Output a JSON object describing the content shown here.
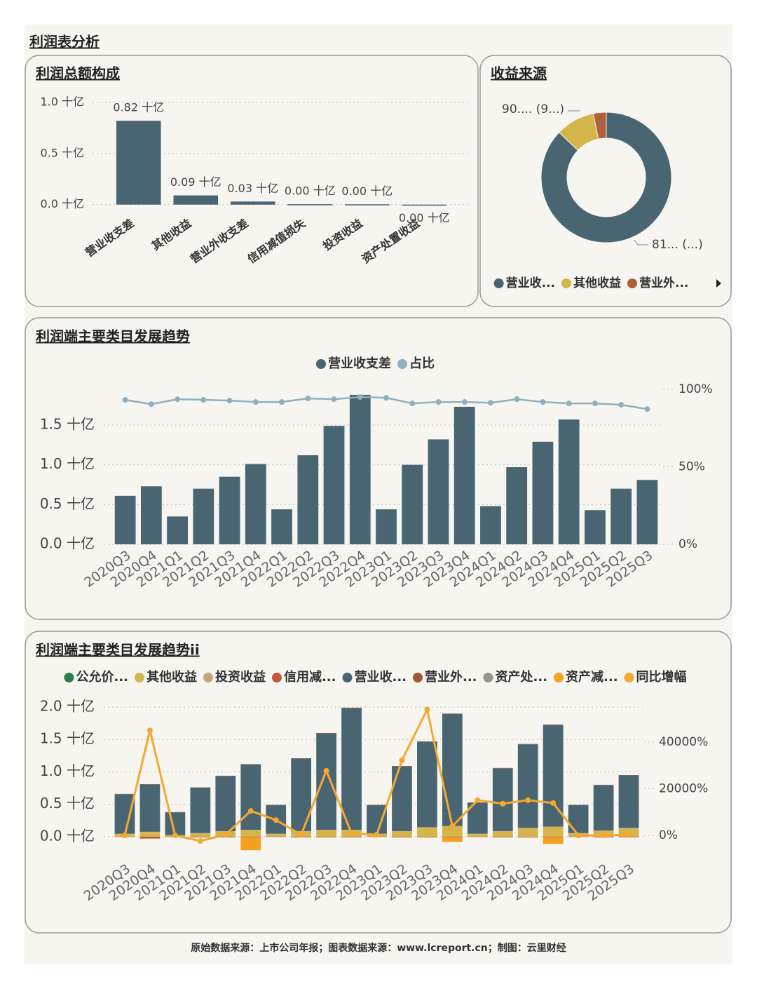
{
  "title": "利润表分析",
  "source": "原始数据来源：上市公司年报；图表数据来源：www.lcreport.cn；制图：云里财经",
  "chart_data": [
    {
      "type": "bar",
      "title": "利润总额构成",
      "categories": [
        "营业收支差",
        "其他收益",
        "营业外收支差",
        "信用减值损失",
        "投资收益",
        "资产处置收益"
      ],
      "values": [
        0.82,
        0.09,
        0.03,
        0.004,
        0.003,
        -0.004
      ],
      "value_labels": [
        "0.82 十亿",
        "0.09 十亿",
        "0.03 十亿",
        "0.00 十亿",
        "0.00 十亿",
        "0.00 十亿"
      ],
      "color": "#4a6572",
      "ylim": [
        -0.05,
        1.0
      ],
      "yticks": [
        {
          "value": 0,
          "label": "0.0 十亿"
        },
        {
          "value": 0.5,
          "label": "0.5 十亿"
        },
        {
          "value": 1.0,
          "label": "1.0 十亿"
        }
      ],
      "grid": true
    },
    {
      "type": "pie",
      "title": "收益来源",
      "categories": [
        "营业收...",
        "其他收益",
        "营业外..."
      ],
      "values": [
        815,
        90.5,
        30
      ],
      "value_labels": [
        "81... (...)",
        "90.... (9...)",
        null
      ],
      "colors": [
        "#4a6572",
        "#d4b54a",
        "#b0603c"
      ]
    },
    {
      "type": "combo",
      "title": "利润端主要类目发展趋势",
      "categories": [
        "2020Q3",
        "2020Q4",
        "2021Q1",
        "2021Q2",
        "2021Q3",
        "2021Q4",
        "2022Q1",
        "2022Q2",
        "2022Q3",
        "2022Q4",
        "2023Q1",
        "2023Q2",
        "2023Q3",
        "2023Q4",
        "2024Q1",
        "2024Q2",
        "2024Q3",
        "2024Q4",
        "2025Q1",
        "2025Q2",
        "2025Q3"
      ],
      "series": [
        {
          "name": "营业收支差",
          "type": "bar",
          "color": "#4a6572",
          "values": [
            0.61,
            0.73,
            0.35,
            0.7,
            0.85,
            1.01,
            0.44,
            1.12,
            1.49,
            1.88,
            0.44,
            1.0,
            1.32,
            1.73,
            0.48,
            0.97,
            1.29,
            1.57,
            0.43,
            0.7,
            0.81
          ]
        },
        {
          "name": "占比",
          "type": "line",
          "axis": "y2",
          "color": "#8fb0c0",
          "values": [
            93.2,
            90.4,
            93.6,
            93.2,
            92.7,
            91.8,
            91.8,
            94.1,
            93.6,
            95.0,
            94.5,
            90.9,
            91.8,
            91.8,
            91.3,
            93.6,
            91.8,
            90.9,
            90.9,
            90.0,
            87.2
          ]
        }
      ],
      "ylim": [
        0,
        1.95
      ],
      "yticks": [
        {
          "value": 0,
          "label": "0.0 十亿"
        },
        {
          "value": 0.5,
          "label": "0.5 十亿"
        },
        {
          "value": 1.0,
          "label": "1.0 十亿"
        },
        {
          "value": 1.5,
          "label": "1.5 十亿"
        }
      ],
      "y2lim": [
        0,
        100
      ],
      "y2ticks": [
        {
          "value": 0,
          "label": "0%"
        },
        {
          "value": 50,
          "label": "50%"
        },
        {
          "value": 100,
          "label": "100%"
        }
      ],
      "grid": true
    },
    {
      "type": "stacked",
      "title": "利润端主要类目发展趋势ii",
      "categories": [
        "2020Q3",
        "2020Q4",
        "2021Q1",
        "2021Q2",
        "2021Q3",
        "2021Q4",
        "2022Q1",
        "2022Q2",
        "2022Q3",
        "2022Q4",
        "2023Q1",
        "2023Q2",
        "2023Q3",
        "2023Q4",
        "2024Q1",
        "2024Q2",
        "2024Q3",
        "2024Q4",
        "2025Q1",
        "2025Q2",
        "2025Q3"
      ],
      "series": [
        {
          "name": "公允价...",
          "type": "bar",
          "color": "#2e7d4f",
          "values": [
            0,
            0,
            0,
            0,
            0,
            0,
            0,
            0,
            0,
            0,
            0,
            0,
            0,
            0,
            0,
            0,
            0,
            0,
            0,
            0,
            0
          ]
        },
        {
          "name": "其他收益",
          "type": "bar",
          "color": "#d4b54a",
          "values": [
            0.04,
            0.07,
            0.02,
            0.05,
            0.08,
            0.1,
            0.04,
            0.08,
            0.1,
            0.1,
            0.04,
            0.08,
            0.14,
            0.16,
            0.04,
            0.08,
            0.13,
            0.15,
            0.05,
            0.09,
            0.13
          ]
        },
        {
          "name": "投资收益",
          "type": "bar",
          "color": "#c8a47c",
          "values": [
            0.005,
            0.005,
            0.005,
            0.005,
            0.005,
            0.005,
            0.005,
            0.005,
            0.005,
            0.005,
            0.005,
            0.005,
            0.005,
            0.005,
            0.005,
            0.005,
            0.005,
            0.005,
            0.005,
            0.005,
            0.005
          ]
        },
        {
          "name": "信用减...",
          "type": "bar",
          "color": "#c8553d",
          "values": [
            -0.005,
            -0.03,
            -0.005,
            -0.01,
            -0.01,
            -0.01,
            -0.005,
            -0.01,
            -0.01,
            -0.01,
            -0.005,
            -0.01,
            -0.01,
            -0.01,
            -0.005,
            -0.01,
            -0.01,
            -0.01,
            -0.005,
            -0.01,
            -0.01
          ]
        },
        {
          "name": "营业收...",
          "type": "bar",
          "color": "#4a6572",
          "values": [
            0.61,
            0.73,
            0.35,
            0.7,
            0.85,
            1.01,
            0.44,
            1.12,
            1.49,
            1.88,
            0.44,
            1.0,
            1.32,
            1.73,
            0.48,
            0.97,
            1.29,
            1.57,
            0.43,
            0.7,
            0.81
          ]
        },
        {
          "name": "营业外...",
          "type": "bar",
          "color": "#a0583a",
          "values": [
            0.005,
            0.005,
            0.005,
            0.005,
            0.005,
            0.005,
            0.005,
            0.005,
            0.005,
            0.005,
            0.005,
            0.005,
            0.005,
            0.005,
            0.005,
            0.005,
            0.005,
            0.005,
            0.005,
            0.005,
            0.005
          ]
        },
        {
          "name": "资产处...",
          "type": "bar",
          "color": "#9a948c",
          "values": [
            0,
            0,
            0,
            0,
            0,
            0,
            0,
            0,
            0,
            0,
            0,
            0,
            0,
            0,
            0,
            0,
            0,
            0,
            0,
            0,
            0
          ]
        },
        {
          "name": "资产减...",
          "type": "bar",
          "color": "#f4a020",
          "values": [
            0,
            0,
            0,
            0,
            0,
            -0.2,
            0,
            0,
            0,
            0,
            0,
            0,
            0,
            -0.07,
            0,
            0,
            0,
            -0.1,
            0,
            0,
            0
          ]
        },
        {
          "name": "同比增幅",
          "type": "line",
          "axis": "y2",
          "color": "#f4a830",
          "values": [
            0,
            45000,
            0,
            -2400,
            300,
            10500,
            6600,
            300,
            27700,
            900,
            300,
            32200,
            53900,
            3900,
            15100,
            13600,
            15100,
            13900,
            0,
            0,
            300
          ]
        }
      ],
      "ylim": [
        -0.24,
        2.0
      ],
      "yticks": [
        {
          "value": 0,
          "label": "0.0 十亿"
        },
        {
          "value": 0.5,
          "label": "0.5 十亿"
        },
        {
          "value": 1.0,
          "label": "1.0 十亿"
        },
        {
          "value": 1.5,
          "label": "1.5 十亿"
        },
        {
          "value": 2.0,
          "label": "2.0 十亿"
        }
      ],
      "y2lim": [
        -7200,
        55000
      ],
      "y2ticks": [
        {
          "value": 0,
          "label": "0%"
        },
        {
          "value": 20000,
          "label": "20000%"
        },
        {
          "value": 40000,
          "label": "40000%"
        }
      ],
      "grid": true
    }
  ]
}
